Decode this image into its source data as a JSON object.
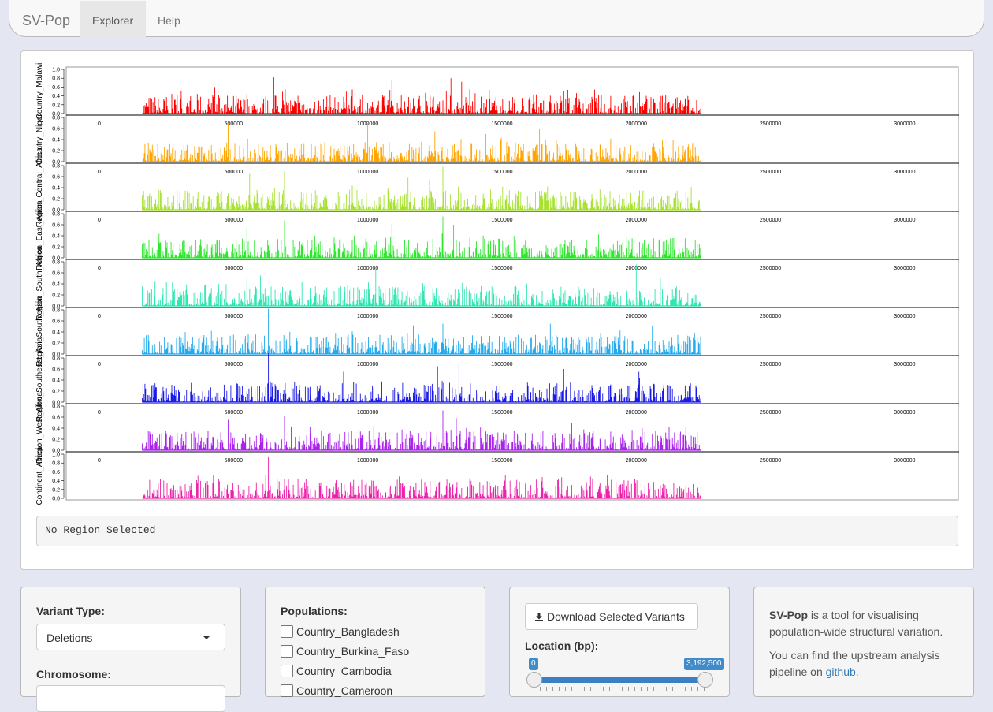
{
  "navbar": {
    "brand": "SV-Pop",
    "tabs": [
      {
        "label": "Explorer",
        "active": true
      },
      {
        "label": "Help",
        "active": false
      }
    ]
  },
  "region_status": "No Region Selected",
  "chart_data": {
    "type": "bar",
    "panels": [
      {
        "name": "Country_Malawi",
        "label": "Country_Malawi",
        "color": "#ff0000",
        "ylim": [
          0,
          1.0
        ],
        "yticks": [
          "1.0",
          "0.8",
          "0.6",
          "0.4",
          "0.2",
          "0.0"
        ],
        "peaks": [
          [
            650000,
            0.82
          ],
          [
            1090000,
            0.75
          ],
          [
            1310000,
            0.8
          ],
          [
            1350000,
            0.72
          ],
          [
            430000,
            0.6
          ],
          [
            1380000,
            0.55
          ]
        ]
      },
      {
        "name": "Country_Niger",
        "label": "Country_Niger",
        "color": "#ffa500",
        "ylim": [
          0,
          0.8
        ],
        "yticks": [
          "0.8",
          "0.6",
          "0.4",
          "0.2",
          "0.0"
        ],
        "peaks": [
          [
            480000,
            0.7
          ],
          [
            1000000,
            0.7
          ],
          [
            1590000,
            0.7
          ],
          [
            1640000,
            0.6
          ],
          [
            1250000,
            0.55
          ],
          [
            1440000,
            0.5
          ]
        ]
      },
      {
        "name": "Region_Central_Africa",
        "label": "Region_Central_Africa",
        "color": "#a6e22e",
        "ylim": [
          0,
          0.8
        ],
        "yticks": [
          "0.8",
          "0.6",
          "0.4",
          "0.2",
          "0.0"
        ],
        "peaks": [
          [
            1280000,
            0.78
          ],
          [
            690000,
            0.7
          ],
          [
            560000,
            0.65
          ],
          [
            1150000,
            0.58
          ],
          [
            1230000,
            0.55
          ]
        ]
      },
      {
        "name": "Region_East_Africa",
        "label": "Region_East_Africa",
        "color": "#2ee62e",
        "ylim": [
          0,
          0.8
        ],
        "yticks": [
          "0.8",
          "0.6",
          "0.4",
          "0.2",
          "0.0"
        ],
        "peaks": [
          [
            1280000,
            0.75
          ],
          [
            690000,
            0.68
          ],
          [
            1090000,
            0.62
          ],
          [
            1320000,
            0.6
          ],
          [
            550000,
            0.55
          ]
        ]
      },
      {
        "name": "Region_South_Africa",
        "label": "Region_South_Africa",
        "color": "#2ee6b0",
        "ylim": [
          0,
          0.8
        ],
        "yticks": [
          "0.8",
          "0.6",
          "0.4",
          "0.2",
          "0.0"
        ],
        "peaks": [
          [
            2000000,
            0.75
          ],
          [
            1030000,
            0.68
          ],
          [
            600000,
            0.55
          ],
          [
            550000,
            0.52
          ],
          [
            2090000,
            0.5
          ]
        ]
      },
      {
        "name": "Region_South_Asia",
        "label": "Region_South_Asia",
        "color": "#22aaee",
        "ylim": [
          0,
          0.8
        ],
        "yticks": [
          "0.8",
          "0.6",
          "0.4",
          "0.2",
          "0.0"
        ],
        "peaks": [
          [
            630000,
            0.82
          ],
          [
            1680000,
            0.55
          ],
          [
            1170000,
            0.52
          ],
          [
            1280000,
            0.55
          ],
          [
            2060000,
            0.5
          ]
        ]
      },
      {
        "name": "Region_Southeast_Asia",
        "label": "Region_Southeast_Asia",
        "color": "#1a1ae6",
        "ylim": [
          0,
          0.8
        ],
        "yticks": [
          "0.8",
          "0.6",
          "0.4",
          "0.2",
          "0.0"
        ],
        "peaks": [
          [
            630000,
            0.88
          ],
          [
            1340000,
            0.7
          ],
          [
            1260000,
            0.65
          ],
          [
            1730000,
            0.6
          ],
          [
            910000,
            0.55
          ],
          [
            2010000,
            0.55
          ]
        ]
      },
      {
        "name": "Region_West_Africa",
        "label": "Region_West_Africa",
        "color": "#aa22ee",
        "ylim": [
          0,
          0.8
        ],
        "yticks": [
          "0.8",
          "0.6",
          "0.4",
          "0.2",
          "0.0"
        ],
        "peaks": [
          [
            1280000,
            0.72
          ],
          [
            690000,
            0.62
          ],
          [
            1330000,
            0.58
          ],
          [
            480000,
            0.55
          ],
          [
            1760000,
            0.5
          ]
        ]
      },
      {
        "name": "Continent_Africa",
        "label": "Continent_Africa",
        "color": "#ee22aa",
        "ylim": [
          0,
          1.0
        ],
        "yticks": [
          "1.0",
          "0.8",
          "0.6",
          "0.4",
          "0.2",
          "0.0"
        ],
        "peaks": [
          [
            630000,
            0.95
          ],
          [
            1650000,
            0.48
          ],
          [
            1380000,
            0.45
          ],
          [
            300000,
            0.3
          ]
        ]
      }
    ],
    "xlim": [
      0,
      3200000
    ],
    "xticks": [
      "0",
      "500000",
      "1000000",
      "1500000",
      "2000000",
      "2500000",
      "3000000"
    ],
    "data_extent": [
      160000,
      2240000
    ]
  },
  "controls": {
    "variant_type": {
      "label": "Variant Type:",
      "value": "Deletions"
    },
    "chromosome": {
      "label": "Chromosome:"
    },
    "populations": {
      "label": "Populations:",
      "items": [
        "Country_Bangladesh",
        "Country_Burkina_Faso",
        "Country_Cambodia",
        "Country_Cameroon"
      ]
    },
    "download_label": "Download Selected Variants",
    "location": {
      "label": "Location (bp):",
      "min_label": "0",
      "max_label": "3,192,500",
      "min": 0,
      "max": 3192500
    }
  },
  "info": {
    "brand": "SV-Pop",
    "text1": " is a tool for visualising population-wide structural variation.",
    "text2": "You can find the upstream analysis pipeline on ",
    "link": "github",
    "text3": "."
  }
}
